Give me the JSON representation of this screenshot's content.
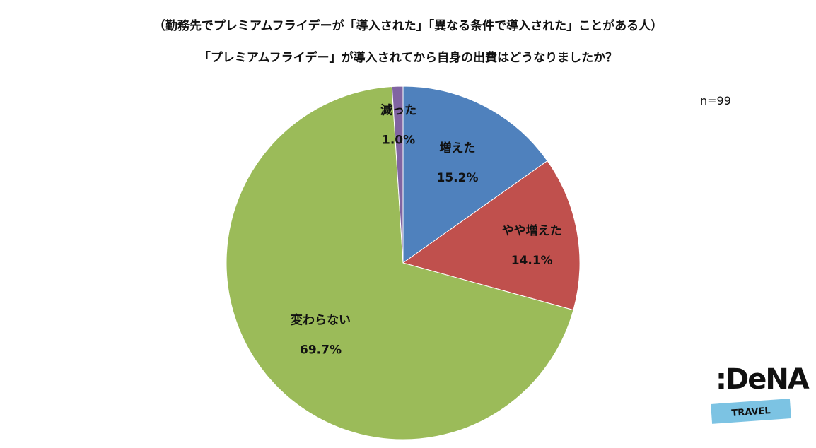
{
  "title_line1": "（勤務先でプレミアムフライデーが「導入された」「異なる条件で導入された」ことがある人）",
  "title_line2": "「プレミアムフライデー」が導入されてから自身の出費はどうなりましたか？",
  "sample_size": "n=99",
  "logo": {
    "name": ":DeNA",
    "badge": "TRAVEL"
  },
  "chart_data": {
    "type": "pie",
    "title": "「プレミアムフライデー」が導入されてから自身の出費はどうなりましたか？",
    "start_angle_deg": 0,
    "direction": "clockwise",
    "slices": [
      {
        "label": "増えた",
        "value": 15.2,
        "value_text": "15.2%",
        "color": "#4f81bd"
      },
      {
        "label": "やや増えた",
        "value": 14.1,
        "value_text": "14.1%",
        "color": "#c0504d"
      },
      {
        "label": "変わらない",
        "value": 69.7,
        "value_text": "69.7%",
        "color": "#9bbb59"
      },
      {
        "label": "減った",
        "value": 1.0,
        "value_text": "1.0%",
        "color": "#8064a2"
      }
    ]
  }
}
